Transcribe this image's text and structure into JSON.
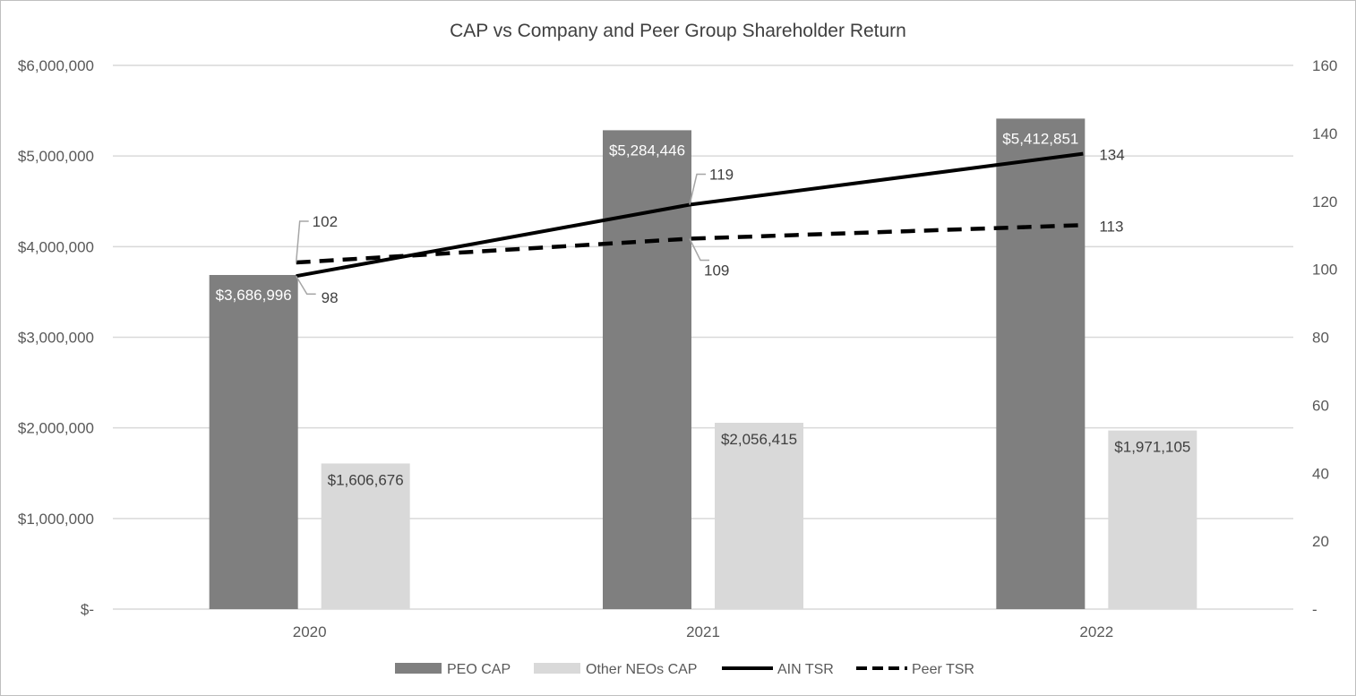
{
  "colors": {
    "peo_bar": "#7f7f7f",
    "neo_bar": "#d9d9d9",
    "tsr_line": "#000000",
    "grid": "#d9d9d9",
    "axis_text": "#595959",
    "leader": "#a6a6a6"
  },
  "chart_data": {
    "type": "bar",
    "title": "CAP vs Company and Peer Group Shareholder Return",
    "categories": [
      "2020",
      "2021",
      "2022"
    ],
    "y_left": {
      "min": 0,
      "max": 6000000,
      "ticks": [
        0,
        1000000,
        2000000,
        3000000,
        4000000,
        5000000,
        6000000
      ],
      "tick_labels": [
        "$-",
        "$1,000,000",
        "$2,000,000",
        "$3,000,000",
        "$4,000,000",
        "$5,000,000",
        "$6,000,000"
      ]
    },
    "y_right": {
      "min": 0,
      "max": 160,
      "ticks": [
        0,
        20,
        40,
        60,
        80,
        100,
        120,
        140,
        160
      ],
      "tick_labels": [
        "-",
        "20",
        "40",
        "60",
        "80",
        "100",
        "120",
        "140",
        "160"
      ]
    },
    "grid": true,
    "legend_position": "bottom",
    "series": [
      {
        "name": "PEO CAP",
        "kind": "bar",
        "axis": "left",
        "values": [
          3686996,
          5284446,
          5412851
        ],
        "labels": [
          "$3,686,996",
          "$5,284,446",
          "$5,412,851"
        ]
      },
      {
        "name": "Other NEOs CAP",
        "kind": "bar",
        "axis": "left",
        "values": [
          1606676,
          2056415,
          1971105
        ],
        "labels": [
          "$1,606,676",
          "$2,056,415",
          "$1,971,105"
        ]
      },
      {
        "name": "AIN TSR",
        "kind": "line",
        "style": "solid",
        "axis": "right",
        "values": [
          98,
          119,
          134
        ],
        "labels": [
          "98",
          "119",
          "134"
        ]
      },
      {
        "name": "Peer TSR",
        "kind": "line",
        "style": "dashed",
        "axis": "right",
        "values": [
          102,
          109,
          113
        ],
        "labels": [
          "102",
          "109",
          "113"
        ]
      }
    ]
  }
}
